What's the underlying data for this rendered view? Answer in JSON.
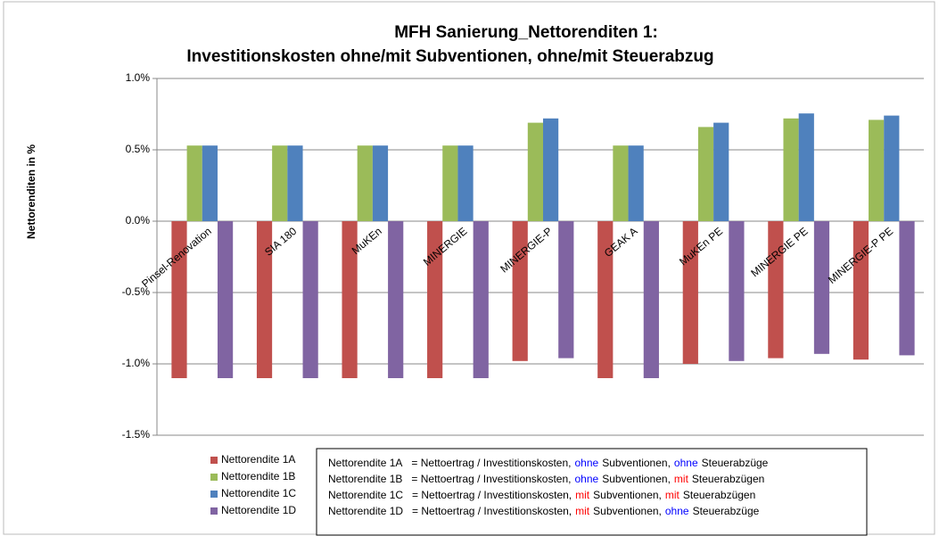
{
  "chart_data": {
    "type": "bar",
    "title": "MFH Sanierung_Nettorenditen 1:",
    "subtitle": "Investitionskosten ohne/mit Subventionen, ohne/mit Steuerabzug",
    "y_label": "Nettorenditen in %",
    "categories": [
      "Pinsel-Renovation",
      "SIA 180",
      "MuKEn",
      "MINERGIE",
      "MINERGIE-P",
      "GEAK A",
      "MuKEn PE",
      "MINERGIE PE",
      "MINERGIE-P PE"
    ],
    "series": [
      {
        "name": "Nettorendite 1A",
        "color": "#c0504d",
        "values": [
          -1.1,
          -1.1,
          -1.1,
          -1.1,
          -0.98,
          -1.1,
          -1.0,
          -0.96,
          -0.97
        ]
      },
      {
        "name": "Nettorendite 1B",
        "color": "#9bbb59",
        "values": [
          0.53,
          0.53,
          0.53,
          0.53,
          0.69,
          0.53,
          0.66,
          0.72,
          0.71
        ]
      },
      {
        "name": "Nettorendite 1C",
        "color": "#4f81bd",
        "values": [
          0.53,
          0.53,
          0.53,
          0.53,
          0.72,
          0.53,
          0.69,
          0.755,
          0.74
        ]
      },
      {
        "name": "Nettorendite 1D",
        "color": "#8064a2",
        "values": [
          -1.1,
          -1.1,
          -1.1,
          -1.1,
          -0.96,
          -1.1,
          -0.98,
          -0.93,
          -0.94
        ]
      }
    ],
    "ylim": [
      -1.5,
      1.0
    ],
    "yticks": [
      {
        "value": 1.0,
        "label": "1.0%"
      },
      {
        "value": 0.5,
        "label": "0.5%"
      },
      {
        "value": 0.0,
        "label": "0.0%"
      },
      {
        "value": -0.5,
        "label": "-0.5%"
      },
      {
        "value": -1.0,
        "label": "-1.0%"
      },
      {
        "value": -1.5,
        "label": "-1.5%"
      }
    ],
    "grid": true,
    "legend": "bottom-left",
    "notes": [
      [
        {
          "text": "Nettorendite 1A",
          "color": "#000000"
        },
        {
          "text": "= Nettoertrag / Investitionskosten,",
          "color": "#000000"
        },
        {
          "text": "ohne",
          "color": "#0000ff"
        },
        {
          "text": "Subventionen,",
          "color": "#000000"
        },
        {
          "text": "ohne",
          "color": "#0000ff"
        },
        {
          "text": "Steuerabzüge",
          "color": "#000000"
        }
      ],
      [
        {
          "text": "Nettorendite 1B",
          "color": "#000000"
        },
        {
          "text": "= Nettoertrag / Investitionskosten,",
          "color": "#000000"
        },
        {
          "text": "ohne",
          "color": "#0000ff"
        },
        {
          "text": "Subventionen,",
          "color": "#000000"
        },
        {
          "text": "mit",
          "color": "#ff0000"
        },
        {
          "text": "Steuerabzügen",
          "color": "#000000"
        }
      ],
      [
        {
          "text": "Nettorendite 1C",
          "color": "#000000"
        },
        {
          "text": "= Nettoertrag / Investitionskosten,",
          "color": "#000000"
        },
        {
          "text": "mit",
          "color": "#ff0000"
        },
        {
          "text": "Subventionen,",
          "color": "#000000"
        },
        {
          "text": "mit",
          "color": "#ff0000"
        },
        {
          "text": "Steuerabzügen",
          "color": "#000000"
        }
      ],
      [
        {
          "text": "Nettorendite 1D",
          "color": "#000000"
        },
        {
          "text": "= Nettoertrag / Investitionskosten,",
          "color": "#000000"
        },
        {
          "text": "mit",
          "color": "#ff0000"
        },
        {
          "text": "Subventionen,",
          "color": "#000000"
        },
        {
          "text": "ohne",
          "color": "#0000ff"
        },
        {
          "text": "Steuerabzüge",
          "color": "#000000"
        }
      ]
    ]
  }
}
